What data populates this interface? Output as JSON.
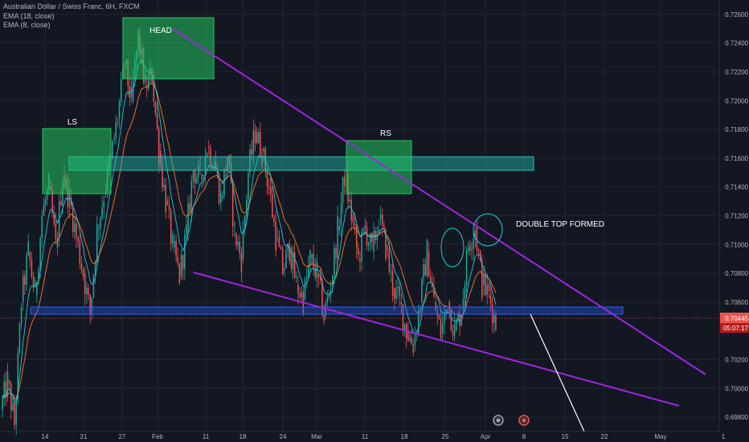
{
  "header": {
    "symbol_line": "Australian Dollar / Swiss Franc, 6H, FXCM",
    "indicators": [
      "EMA (18, close)",
      "EMA (8, close)"
    ]
  },
  "colors": {
    "background": "#131722",
    "grid": "#1f2433",
    "candle_up": "#26a69a",
    "candle_down": "#ef5350",
    "ema_fast": "#26c6da",
    "ema_slow": "#f57c2a",
    "trendline": "#9c27e0",
    "box_green": "#22c55e",
    "zone_teal": "#21bfae",
    "zone_blue": "#2962ff",
    "price_line": "#ef5350",
    "projection": "#ffffff",
    "axis_text": "#b2b5be"
  },
  "chart_data": {
    "type": "candlestick",
    "title": "Australian Dollar / Swiss Franc, 6H, FXCM",
    "x_tick_labels": [
      "14",
      "21",
      "27",
      "Feb",
      "11",
      "18",
      "24",
      "Mar",
      "11",
      "18",
      "25",
      "Apr",
      "8",
      "15",
      "22",
      "May",
      "1"
    ],
    "y_tick_labels": [
      "0.72600",
      "0.72400",
      "0.72200",
      "0.72000",
      "0.71800",
      "0.71600",
      "0.71400",
      "0.71200",
      "0.71000",
      "0.70800",
      "0.70600",
      "0.70200",
      "0.70000",
      "0.69800"
    ],
    "ylim": [
      0.697,
      0.727
    ],
    "grid": true,
    "last_price": "0.70445",
    "countdown": "05:07:17",
    "annotations": [
      {
        "label": "HEAD",
        "kind": "box"
      },
      {
        "label": "LS",
        "kind": "box"
      },
      {
        "label": "RS",
        "kind": "box"
      },
      {
        "label": "DOUBLE TOP FORMED",
        "kind": "text"
      }
    ],
    "zones": [
      {
        "name": "resistance-zone",
        "low": 0.7158,
        "high": 0.7168
      },
      {
        "name": "support-zone",
        "low": 0.7045,
        "high": 0.705
      }
    ],
    "trendlines": [
      {
        "name": "upper-wedge-line",
        "from": [
          "Feb 2",
          0.726
        ],
        "to": [
          "Apr 22",
          0.7004
        ]
      },
      {
        "name": "lower-wedge-line",
        "from": [
          "Feb 10",
          0.7077
        ],
        "to": [
          "Apr 27",
          0.6983
        ]
      },
      {
        "name": "projection-line",
        "from": [
          "Apr 7",
          0.7045
        ],
        "to": [
          "Apr 16",
          0.6972
        ]
      }
    ],
    "price_path": [
      [
        0.6985,
        0.7005
      ],
      [
        0.7005,
        0.6975
      ],
      [
        0.6975,
        0.706
      ],
      [
        0.706,
        0.7095
      ],
      [
        0.7095,
        0.7065
      ],
      [
        0.7065,
        0.712
      ],
      [
        0.712,
        0.714
      ],
      [
        0.714,
        0.7098
      ],
      [
        0.7098,
        0.7148
      ],
      [
        0.7148,
        0.7132
      ],
      [
        0.7132,
        0.7105
      ],
      [
        0.7105,
        0.708
      ],
      [
        0.708,
        0.7052
      ],
      [
        0.7052,
        0.711
      ],
      [
        0.711,
        0.7135
      ],
      [
        0.7135,
        0.716
      ],
      [
        0.716,
        0.7188
      ],
      [
        0.7188,
        0.7225
      ],
      [
        0.7225,
        0.72
      ],
      [
        0.72,
        0.7245
      ],
      [
        0.7245,
        0.721
      ],
      [
        0.721,
        0.7218
      ],
      [
        0.7218,
        0.7165
      ],
      [
        0.7165,
        0.713
      ],
      [
        0.713,
        0.7098
      ],
      [
        0.7098,
        0.7078
      ],
      [
        0.7078,
        0.7108
      ],
      [
        0.7108,
        0.7152
      ],
      [
        0.7152,
        0.7145
      ],
      [
        0.7145,
        0.7168
      ],
      [
        0.7168,
        0.7158
      ],
      [
        0.7158,
        0.7132
      ],
      [
        0.7132,
        0.7162
      ],
      [
        0.7162,
        0.7108
      ],
      [
        0.7108,
        0.709
      ],
      [
        0.709,
        0.715
      ],
      [
        0.715,
        0.7178
      ],
      [
        0.7178,
        0.7165
      ],
      [
        0.7165,
        0.714
      ],
      [
        0.714,
        0.7105
      ],
      [
        0.7105,
        0.7082
      ],
      [
        0.7082,
        0.7098
      ],
      [
        0.7098,
        0.7072
      ],
      [
        0.7072,
        0.7062
      ],
      [
        0.7062,
        0.709
      ],
      [
        0.709,
        0.708
      ],
      [
        0.708,
        0.705
      ],
      [
        0.705,
        0.7072
      ],
      [
        0.7072,
        0.711
      ],
      [
        0.711,
        0.7148
      ],
      [
        0.7148,
        0.712
      ],
      [
        0.712,
        0.709
      ],
      [
        0.709,
        0.7112
      ],
      [
        0.7112,
        0.7095
      ],
      [
        0.7095,
        0.7118
      ],
      [
        0.7118,
        0.7098
      ],
      [
        0.7098,
        0.707
      ],
      [
        0.707,
        0.706
      ],
      [
        0.706,
        0.704
      ],
      [
        0.704,
        0.703
      ],
      [
        0.703,
        0.706
      ],
      [
        0.706,
        0.7095
      ],
      [
        0.7095,
        0.706
      ],
      [
        0.706,
        0.7038
      ],
      [
        0.7038,
        0.706
      ],
      [
        0.706,
        0.704
      ],
      [
        0.704,
        0.7055
      ],
      [
        0.7055,
        0.71
      ],
      [
        0.71,
        0.7112
      ],
      [
        0.7112,
        0.7072
      ],
      [
        0.7072,
        0.7065
      ],
      [
        0.7065,
        0.7045
      ]
    ]
  }
}
